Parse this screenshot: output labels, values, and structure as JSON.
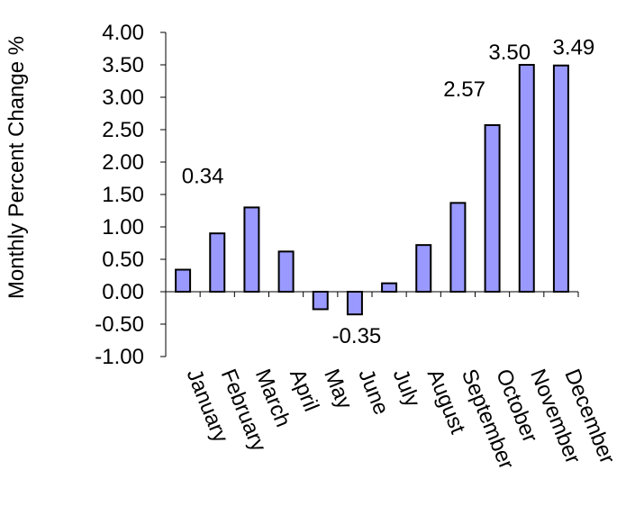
{
  "chart_data": {
    "type": "bar",
    "ylabel": "Monthly Percent Change %",
    "categories": [
      "January",
      "February",
      "March",
      "April",
      "May",
      "June",
      "July",
      "August",
      "September",
      "October",
      "November",
      "December"
    ],
    "values": [
      0.34,
      0.9,
      1.3,
      0.62,
      -0.27,
      -0.35,
      0.13,
      0.72,
      1.37,
      2.57,
      3.5,
      3.49
    ],
    "data_labels": [
      {
        "index": 0,
        "text": "0.34"
      },
      {
        "index": 5,
        "text": "-0.35"
      },
      {
        "index": 9,
        "text": "2.57"
      },
      {
        "index": 10,
        "text": "3.50"
      },
      {
        "index": 11,
        "text": "3.49"
      }
    ],
    "ylim": [
      -1.0,
      4.0
    ],
    "y_ticks": [
      "4.00",
      "3.50",
      "3.00",
      "2.50",
      "2.00",
      "1.50",
      "1.00",
      "0.50",
      "0.00",
      "-0.50",
      "-1.00"
    ],
    "grid": false,
    "legend": "none",
    "bar_color": "#9999ff",
    "bar_border_color": "#000000"
  }
}
